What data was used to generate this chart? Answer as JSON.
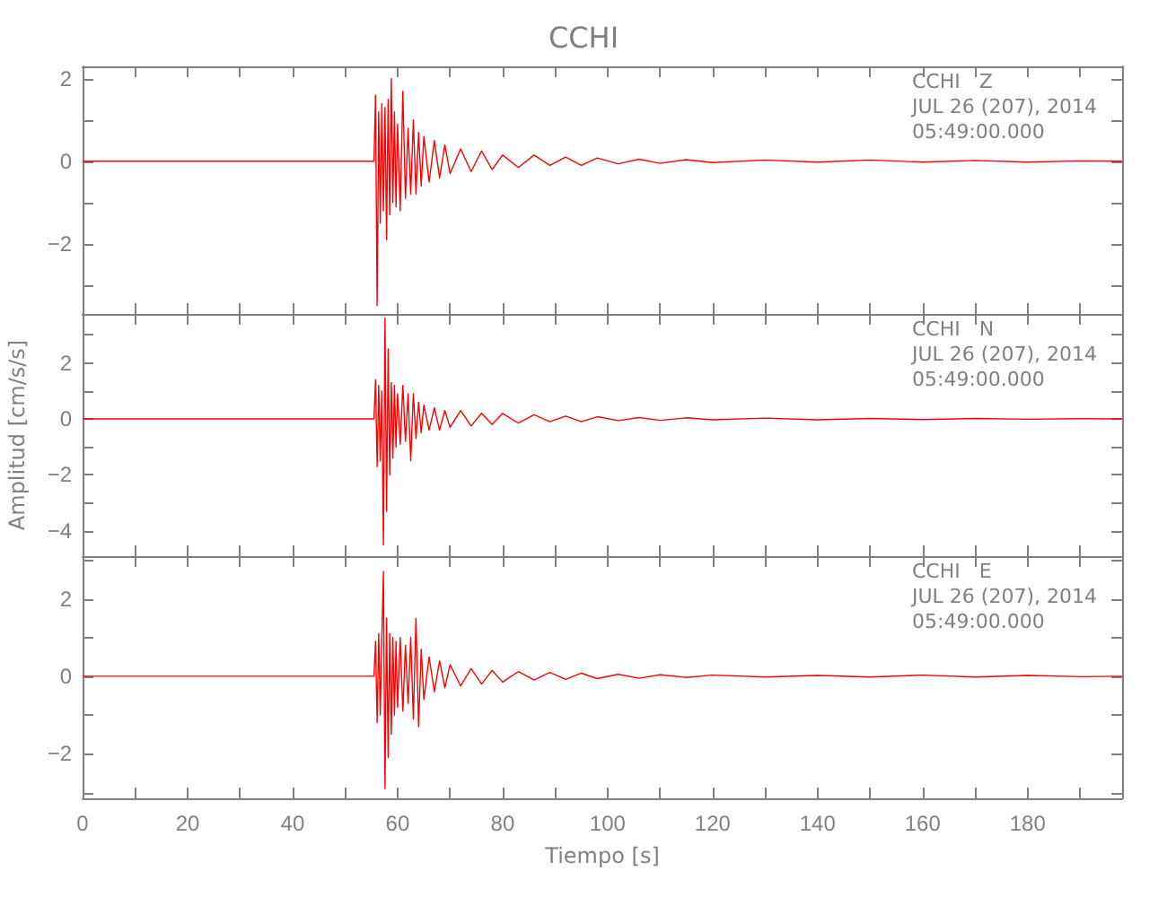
{
  "chart_data": [
    {
      "type": "line",
      "title": "CCHI",
      "annotations": [
        "CCHI   Z",
        "JUL 26 (207), 2014",
        "05:49:00.000"
      ],
      "tick_labels": "y",
      "grid": false,
      "marker": "none",
      "line_style": "solid",
      "xlim": [
        0,
        198
      ],
      "xticks": [
        0,
        {
          "value": 10,
          "label": null
        },
        20,
        {
          "value": 30,
          "label": null
        },
        40,
        {
          "value": 50,
          "label": null
        },
        60,
        {
          "value": 70,
          "label": null
        },
        80,
        {
          "value": 90,
          "label": null
        },
        100,
        {
          "value": 110,
          "label": null
        },
        120,
        {
          "value": 130,
          "label": null
        },
        140,
        {
          "value": 150,
          "label": null
        },
        160,
        {
          "value": 170,
          "label": null
        },
        180,
        {
          "value": 190,
          "label": null
        }
      ],
      "ylim": [
        -3.7,
        2.3
      ],
      "yticks": [
        {
          "value": -3,
          "label": null
        },
        -2,
        {
          "value": -1,
          "label": null
        },
        0,
        {
          "value": 1,
          "label": null
        },
        2
      ],
      "x": [
        0,
        55.5,
        55.8,
        56.1,
        56.4,
        56.7,
        57.0,
        57.3,
        57.6,
        57.9,
        58.2,
        58.5,
        58.8,
        59.1,
        59.4,
        59.7,
        60,
        60.5,
        61,
        61.5,
        62,
        62.5,
        63,
        63.5,
        64,
        64.5,
        65,
        66,
        67,
        68,
        69,
        70,
        72,
        74,
        76,
        78,
        80,
        83,
        86,
        89,
        92,
        95,
        98,
        102,
        106,
        110,
        115,
        120,
        130,
        140,
        150,
        160,
        170,
        180,
        190,
        198
      ],
      "series": [
        {
          "color": "#ff0000",
          "values": [
            0,
            0,
            1.6,
            -3.5,
            1.2,
            -1.5,
            1.4,
            -1.2,
            1.3,
            -1.9,
            1.5,
            -1.3,
            2.0,
            -1.0,
            1.2,
            -1.1,
            0.9,
            -1.2,
            1.7,
            -0.9,
            0.8,
            -0.8,
            1.0,
            -0.8,
            0.7,
            -0.6,
            0.6,
            -0.5,
            0.5,
            -0.4,
            0.4,
            -0.3,
            0.3,
            -0.25,
            0.25,
            -0.2,
            0.15,
            -0.15,
            0.15,
            -0.1,
            0.1,
            -0.1,
            0.08,
            -0.06,
            0.05,
            -0.05,
            0.04,
            -0.03,
            0.03,
            -0.02,
            0.03,
            -0.02,
            0.02,
            -0.02,
            0.01,
            0
          ]
        }
      ]
    },
    {
      "type": "line",
      "ylabel": "Amplitud [cm/s/s]",
      "annotations": [
        "CCHI   N",
        "JUL 26 (207), 2014",
        "05:49:00.000"
      ],
      "tick_labels": "y",
      "grid": false,
      "marker": "none",
      "line_style": "solid",
      "xlim": [
        0,
        198
      ],
      "xticks": [
        0,
        {
          "value": 10,
          "label": null
        },
        20,
        {
          "value": 30,
          "label": null
        },
        40,
        {
          "value": 50,
          "label": null
        },
        60,
        {
          "value": 70,
          "label": null
        },
        80,
        {
          "value": 90,
          "label": null
        },
        100,
        {
          "value": 110,
          "label": null
        },
        120,
        {
          "value": 130,
          "label": null
        },
        140,
        {
          "value": 150,
          "label": null
        },
        160,
        {
          "value": 170,
          "label": null
        },
        180,
        {
          "value": 190,
          "label": null
        }
      ],
      "ylim": [
        -4.9,
        3.75
      ],
      "yticks": [
        -4,
        {
          "value": -3,
          "label": null
        },
        -2,
        {
          "value": -1,
          "label": null
        },
        0,
        {
          "value": 1,
          "label": null
        },
        2,
        {
          "value": 3,
          "label": null
        }
      ],
      "x": [
        0,
        55.5,
        55.8,
        56.1,
        56.4,
        56.7,
        57.0,
        57.3,
        57.6,
        57.9,
        58.2,
        58.5,
        58.8,
        59.1,
        59.4,
        59.7,
        60,
        60.5,
        61,
        61.5,
        62,
        62.5,
        63,
        63.5,
        64,
        64.5,
        65,
        66,
        67,
        68,
        69,
        70,
        72,
        74,
        76,
        78,
        80,
        83,
        86,
        89,
        92,
        95,
        98,
        102,
        106,
        110,
        115,
        120,
        130,
        140,
        150,
        160,
        170,
        180,
        190,
        198
      ],
      "series": [
        {
          "color": "#ff0000",
          "values": [
            0,
            0,
            1.4,
            -1.7,
            1.2,
            -1.5,
            1.0,
            -4.5,
            3.6,
            -3.3,
            2.5,
            -2.0,
            1.3,
            -1.4,
            1.2,
            -1.0,
            0.9,
            -0.9,
            1.2,
            -0.8,
            0.9,
            -1.5,
            0.9,
            -0.7,
            0.6,
            -0.5,
            0.5,
            -0.4,
            0.4,
            -0.4,
            0.3,
            -0.3,
            0.3,
            -0.25,
            0.2,
            -0.2,
            0.2,
            -0.15,
            0.15,
            -0.1,
            0.1,
            -0.1,
            0.08,
            -0.06,
            0.05,
            -0.05,
            0.04,
            -0.03,
            0.03,
            -0.03,
            0.02,
            -0.02,
            0.02,
            -0.01,
            0.01,
            0
          ]
        }
      ]
    },
    {
      "type": "line",
      "xlabel": "Tiempo [s]",
      "annotations": [
        "CCHI   E",
        "JUL 26 (207), 2014",
        "05:49:00.000"
      ],
      "grid": false,
      "marker": "none",
      "line_style": "solid",
      "xlim": [
        0,
        198
      ],
      "xticks": [
        0,
        {
          "value": 10,
          "label": null
        },
        20,
        {
          "value": 30,
          "label": null
        },
        40,
        {
          "value": 50,
          "label": null
        },
        60,
        {
          "value": 70,
          "label": null
        },
        80,
        {
          "value": 90,
          "label": null
        },
        100,
        {
          "value": 110,
          "label": null
        },
        120,
        {
          "value": 130,
          "label": null
        },
        140,
        {
          "value": 150,
          "label": null
        },
        160,
        {
          "value": 170,
          "label": null
        },
        180,
        {
          "value": 190,
          "label": null
        }
      ],
      "ylim": [
        -3.15,
        3.1
      ],
      "yticks": [
        {
          "value": -3,
          "label": null
        },
        -2,
        {
          "value": -1,
          "label": null
        },
        0,
        {
          "value": 1,
          "label": null
        },
        2,
        {
          "value": 3,
          "label": null
        }
      ],
      "x": [
        0,
        55.5,
        55.8,
        56.1,
        56.4,
        56.7,
        57.0,
        57.3,
        57.6,
        57.9,
        58.2,
        58.5,
        58.8,
        59.1,
        59.4,
        59.7,
        60,
        60.5,
        61,
        61.5,
        62,
        62.5,
        63,
        63.5,
        64,
        64.5,
        65,
        66,
        67,
        68,
        69,
        70,
        72,
        74,
        76,
        78,
        80,
        83,
        86,
        89,
        92,
        95,
        98,
        102,
        106,
        110,
        115,
        120,
        130,
        140,
        150,
        160,
        170,
        180,
        190,
        198
      ],
      "series": [
        {
          "color": "#ff0000",
          "values": [
            0,
            0,
            0.9,
            -1.2,
            1.1,
            -1.0,
            1.0,
            2.7,
            -2.9,
            1.5,
            -2.1,
            1.1,
            -1.5,
            1.0,
            -1.0,
            0.9,
            -0.8,
            1.0,
            -0.9,
            0.8,
            -0.7,
            1.0,
            -1.1,
            1.5,
            -1.3,
            0.7,
            -0.6,
            0.5,
            -0.4,
            0.4,
            -0.3,
            0.3,
            -0.25,
            0.2,
            -0.2,
            0.15,
            -0.15,
            0.12,
            -0.1,
            0.1,
            -0.08,
            0.08,
            -0.06,
            0.05,
            -0.05,
            0.04,
            -0.03,
            0.03,
            -0.02,
            0.02,
            -0.02,
            0.03,
            -0.02,
            0.02,
            -0.01,
            0
          ]
        }
      ]
    }
  ]
}
